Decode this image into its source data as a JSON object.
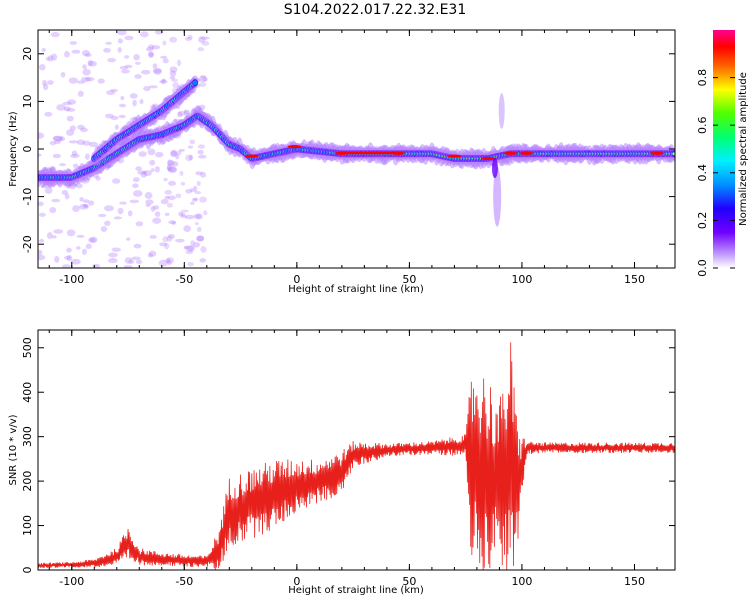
{
  "title": "S104.2022.017.22.32.E31",
  "colors": {
    "snr_line": "#e8201c",
    "spectrogram_cmap": [
      "#ffffff",
      "#b27cff",
      "#6a00ff",
      "#3300ff",
      "#0080ff",
      "#00e0ff",
      "#00ff80",
      "#60ff00",
      "#ffff00",
      "#ff8000",
      "#ff0000",
      "#ff00a0"
    ]
  },
  "chart_data": [
    {
      "type": "heatmap",
      "title": "S104.2022.017.22.32.E31",
      "xlabel": "Height of straight line (km)",
      "ylabel": "Frequency (Hz)",
      "xlim": [
        -115,
        168
      ],
      "ylim": [
        -25,
        25
      ],
      "xticks": [
        -100,
        -50,
        0,
        50,
        100,
        150
      ],
      "yticks": [
        -20,
        -10,
        0,
        10,
        20
      ],
      "colorbar": {
        "label": "Normalized spectral amplitude",
        "range": [
          0.0,
          1.0
        ],
        "ticks": [
          0.0,
          0.2,
          0.4,
          0.6,
          0.8
        ]
      },
      "tracks": [
        {
          "name_hidden": true,
          "points": [
            [
              -115,
              -6
            ],
            [
              -100,
              -6
            ],
            [
              -90,
              -4
            ],
            [
              -80,
              -1
            ],
            [
              -70,
              2
            ],
            [
              -60,
              3
            ],
            [
              -50,
              5
            ],
            [
              -44,
              7
            ],
            [
              -38,
              5
            ],
            [
              -30,
              1
            ],
            [
              -25,
              0
            ],
            [
              -20,
              -2
            ],
            [
              -10,
              -1
            ],
            [
              0,
              0
            ],
            [
              20,
              -1
            ],
            [
              60,
              -1
            ],
            [
              70,
              -2
            ],
            [
              85,
              -2
            ],
            [
              95,
              -1
            ],
            [
              110,
              -1
            ],
            [
              168,
              -1
            ]
          ]
        },
        {
          "name_hidden": true,
          "points": [
            [
              -90,
              -2
            ],
            [
              -80,
              2
            ],
            [
              -70,
              5
            ],
            [
              -60,
              8
            ],
            [
              -50,
              12
            ],
            [
              -45,
              14
            ]
          ]
        }
      ]
    },
    {
      "type": "line",
      "xlabel": "Height of straight line (km)",
      "ylabel": "SNR (10 * v/v)",
      "xlim": [
        -115,
        168
      ],
      "ylim": [
        0,
        540
      ],
      "xticks": [
        -100,
        -50,
        0,
        50,
        100,
        150
      ],
      "yticks": [
        0,
        100,
        200,
        300,
        400,
        500
      ],
      "envelope": {
        "x": [
          -115,
          -100,
          -90,
          -80,
          -75,
          -70,
          -60,
          -50,
          -40,
          -35,
          -30,
          -20,
          -10,
          0,
          10,
          20,
          25,
          40,
          60,
          75,
          78,
          85,
          90,
          95,
          98,
          102,
          110,
          130,
          150,
          168
        ],
        "mean": [
          10,
          12,
          15,
          30,
          60,
          30,
          25,
          20,
          20,
          40,
          130,
          150,
          170,
          190,
          200,
          220,
          260,
          270,
          275,
          280,
          230,
          220,
          200,
          240,
          180,
          275,
          275,
          275,
          275,
          275
        ],
        "amp": [
          6,
          6,
          10,
          20,
          40,
          20,
          15,
          15,
          12,
          50,
          80,
          80,
          80,
          60,
          50,
          50,
          30,
          15,
          15,
          25,
          250,
          220,
          180,
          280,
          150,
          15,
          12,
          12,
          12,
          12
        ]
      }
    }
  ]
}
